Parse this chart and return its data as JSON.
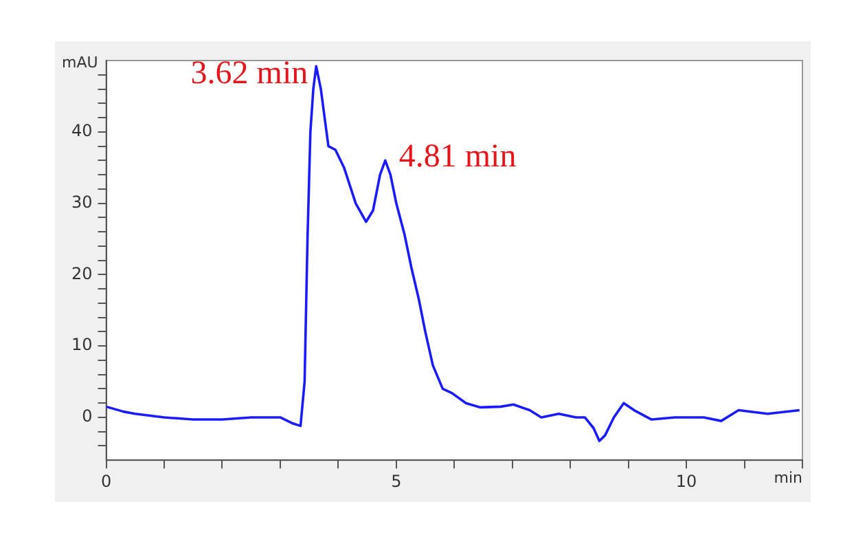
{
  "chart_data": {
    "type": "line",
    "xlabel": "min",
    "ylabel": "mAU",
    "x": [
      0,
      0.3,
      0.5,
      1,
      1.5,
      2,
      2.5,
      3,
      3.2,
      3.35,
      3.42,
      3.47,
      3.52,
      3.57,
      3.62,
      3.7,
      3.83,
      3.95,
      4.1,
      4.3,
      4.48,
      4.6,
      4.72,
      4.81,
      4.9,
      5.0,
      5.14,
      5.26,
      5.39,
      5.5,
      5.63,
      5.8,
      5.96,
      6.2,
      6.45,
      6.8,
      7.02,
      7.3,
      7.5,
      7.8,
      8.1,
      8.25,
      8.4,
      8.5,
      8.6,
      8.75,
      8.92,
      9.1,
      9.4,
      9.8,
      10.3,
      10.6,
      10.9,
      11.4,
      11.95
    ],
    "series": [
      {
        "color": "#1a1aff",
        "values": [
          1.5,
          0.8,
          0.5,
          0,
          -0.3,
          -0.3,
          0,
          0,
          -0.8,
          -1.2,
          5,
          25,
          40,
          46,
          49.2,
          46,
          38,
          37.5,
          35,
          30,
          27.4,
          29,
          34,
          36,
          34,
          30,
          25.7,
          21,
          16.5,
          12,
          7.3,
          4,
          3.4,
          2,
          1.4,
          1.5,
          1.8,
          1,
          0,
          0.5,
          0,
          0,
          -1.5,
          -3.3,
          -2.5,
          0,
          2,
          1,
          -0.3,
          0,
          0,
          -0.5,
          1,
          0.5,
          1
        ]
      }
    ],
    "xlim": [
      0,
      12
    ],
    "ylim": [
      -6,
      50
    ],
    "xticks": [
      0,
      {
        "value": 1,
        "label": null
      },
      {
        "value": 2,
        "label": null
      },
      {
        "value": 3,
        "label": null
      },
      {
        "value": 4,
        "label": null
      },
      5,
      {
        "value": 6,
        "label": null
      },
      {
        "value": 7,
        "label": null
      },
      {
        "value": 8,
        "label": null
      },
      {
        "value": 9,
        "label": null
      },
      10,
      {
        "value": 11,
        "label": null
      },
      {
        "value": 12,
        "label": null
      }
    ],
    "yticks": [
      {
        "value": -4,
        "label": null
      },
      {
        "value": -2,
        "label": null
      },
      0,
      {
        "value": 2,
        "label": null
      },
      {
        "value": 4,
        "label": null
      },
      {
        "value": 6,
        "label": null
      },
      {
        "value": 8,
        "label": null
      },
      10,
      {
        "value": 12,
        "label": null
      },
      {
        "value": 14,
        "label": null
      },
      {
        "value": 16,
        "label": null
      },
      {
        "value": 18,
        "label": null
      },
      20,
      {
        "value": 22,
        "label": null
      },
      {
        "value": 24,
        "label": null
      },
      {
        "value": 26,
        "label": null
      },
      {
        "value": 28,
        "label": null
      },
      30,
      {
        "value": 32,
        "label": null
      },
      {
        "value": 34,
        "label": null
      },
      {
        "value": 36,
        "label": null
      },
      {
        "value": 38,
        "label": null
      },
      40,
      {
        "value": 42,
        "label": null
      },
      {
        "value": 44,
        "label": null
      },
      {
        "value": 46,
        "label": null
      },
      {
        "value": 48,
        "label": null
      }
    ],
    "annotations": [
      {
        "text": "3.62 min",
        "x": 3.62,
        "y": 49.2
      },
      {
        "text": "4.81 min",
        "x": 4.81,
        "y": 36
      }
    ],
    "grid": false,
    "legend": false,
    "marker": "none",
    "line_style": "solid"
  }
}
